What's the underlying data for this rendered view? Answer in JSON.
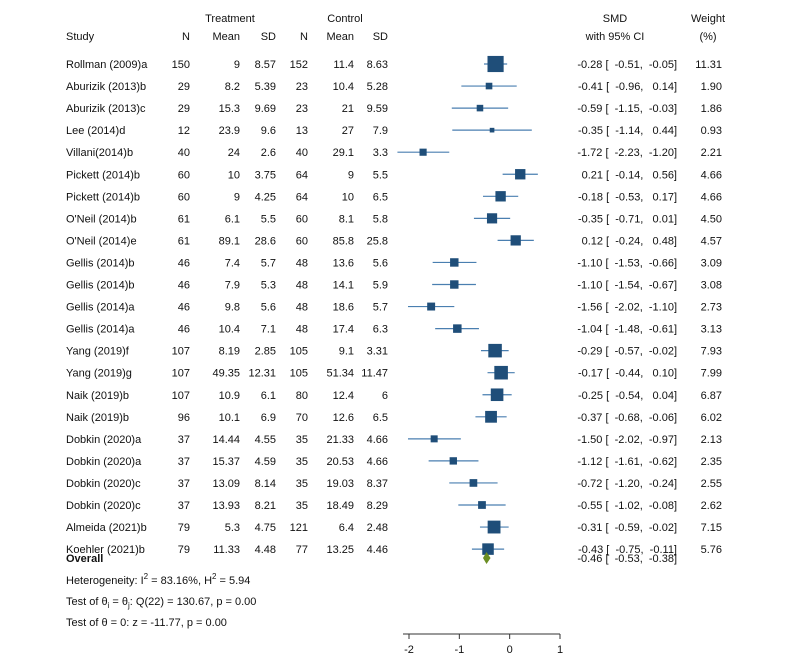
{
  "chart_data": {
    "type": "forest",
    "headers": {
      "group_treatment": "Treatment",
      "group_control": "Control",
      "study": "Study",
      "n": "N",
      "mean": "Mean",
      "sd": "SD",
      "smd": "SMD",
      "ci": "with 95% CI",
      "weight": "Weight",
      "weight_unit": "(%)"
    },
    "studies": [
      {
        "study": "Rollman (2009)a",
        "tn": "150",
        "tmean": "9",
        "tsd": "8.57",
        "cn": "152",
        "cmean": "11.4",
        "csd": "8.63",
        "smd": -0.28,
        "lo": -0.51,
        "hi": -0.05,
        "ci_text": "-0.28 [  -0.51,  -0.05]",
        "weight": 11.31,
        "weight_text": "11.31"
      },
      {
        "study": "Aburizik (2013)b",
        "tn": "29",
        "tmean": "8.2",
        "tsd": "5.39",
        "cn": "23",
        "cmean": "10.4",
        "csd": "5.28",
        "smd": -0.41,
        "lo": -0.96,
        "hi": 0.14,
        "ci_text": "-0.41 [  -0.96,   0.14]",
        "weight": 1.9,
        "weight_text": "1.90"
      },
      {
        "study": "Aburizik (2013)c",
        "tn": "29",
        "tmean": "15.3",
        "tsd": "9.69",
        "cn": "23",
        "cmean": "21",
        "csd": "9.59",
        "smd": -0.59,
        "lo": -1.15,
        "hi": -0.03,
        "ci_text": "-0.59 [  -1.15,  -0.03]",
        "weight": 1.86,
        "weight_text": "1.86"
      },
      {
        "study": "Lee (2014)d",
        "tn": "12",
        "tmean": "23.9",
        "tsd": "9.6",
        "cn": "13",
        "cmean": "27",
        "csd": "7.9",
        "smd": -0.35,
        "lo": -1.14,
        "hi": 0.44,
        "ci_text": "-0.35 [  -1.14,   0.44]",
        "weight": 0.93,
        "weight_text": "0.93"
      },
      {
        "study": "Villani(2014)b",
        "tn": "40",
        "tmean": "24",
        "tsd": "2.6",
        "cn": "40",
        "cmean": "29.1",
        "csd": "3.3",
        "smd": -1.72,
        "lo": -2.23,
        "hi": -1.2,
        "ci_text": "-1.72 [  -2.23,  -1.20]",
        "weight": 2.21,
        "weight_text": "2.21"
      },
      {
        "study": "Pickett (2014)b",
        "tn": "60",
        "tmean": "10",
        "tsd": "3.75",
        "cn": "64",
        "cmean": "9",
        "csd": "5.5",
        "smd": 0.21,
        "lo": -0.14,
        "hi": 0.56,
        "ci_text": "0.21 [  -0.14,   0.56]",
        "weight": 4.66,
        "weight_text": "4.66"
      },
      {
        "study": "Pickett (2014)b",
        "tn": "60",
        "tmean": "9",
        "tsd": "4.25",
        "cn": "64",
        "cmean": "10",
        "csd": "6.5",
        "smd": -0.18,
        "lo": -0.53,
        "hi": 0.17,
        "ci_text": "-0.18 [  -0.53,   0.17]",
        "weight": 4.66,
        "weight_text": "4.66"
      },
      {
        "study": "O'Neil (2014)b",
        "tn": "61",
        "tmean": "6.1",
        "tsd": "5.5",
        "cn": "60",
        "cmean": "8.1",
        "csd": "5.8",
        "smd": -0.35,
        "lo": -0.71,
        "hi": 0.01,
        "ci_text": "-0.35 [  -0.71,   0.01]",
        "weight": 4.5,
        "weight_text": "4.50"
      },
      {
        "study": "O'Neil (2014)e",
        "tn": "61",
        "tmean": "89.1",
        "tsd": "28.6",
        "cn": "60",
        "cmean": "85.8",
        "csd": "25.8",
        "smd": 0.12,
        "lo": -0.24,
        "hi": 0.48,
        "ci_text": "0.12 [  -0.24,   0.48]",
        "weight": 4.57,
        "weight_text": "4.57"
      },
      {
        "study": "Gellis (2014)b",
        "tn": "46",
        "tmean": "7.4",
        "tsd": "5.7",
        "cn": "48",
        "cmean": "13.6",
        "csd": "5.6",
        "smd": -1.1,
        "lo": -1.53,
        "hi": -0.66,
        "ci_text": "-1.10 [  -1.53,  -0.66]",
        "weight": 3.09,
        "weight_text": "3.09"
      },
      {
        "study": "Gellis (2014)b",
        "tn": "46",
        "tmean": "7.9",
        "tsd": "5.3",
        "cn": "48",
        "cmean": "14.1",
        "csd": "5.9",
        "smd": -1.1,
        "lo": -1.54,
        "hi": -0.67,
        "ci_text": "-1.10 [  -1.54,  -0.67]",
        "weight": 3.08,
        "weight_text": "3.08"
      },
      {
        "study": "Gellis (2014)a",
        "tn": "46",
        "tmean": "9.8",
        "tsd": "5.6",
        "cn": "48",
        "cmean": "18.6",
        "csd": "5.7",
        "smd": -1.56,
        "lo": -2.02,
        "hi": -1.1,
        "ci_text": "-1.56 [  -2.02,  -1.10]",
        "weight": 2.73,
        "weight_text": "2.73"
      },
      {
        "study": "Gellis (2014)a",
        "tn": "46",
        "tmean": "10.4",
        "tsd": "7.1",
        "cn": "48",
        "cmean": "17.4",
        "csd": "6.3",
        "smd": -1.04,
        "lo": -1.48,
        "hi": -0.61,
        "ci_text": "-1.04 [  -1.48,  -0.61]",
        "weight": 3.13,
        "weight_text": "3.13"
      },
      {
        "study": "Yang (2019)f",
        "tn": "107",
        "tmean": "8.19",
        "tsd": "2.85",
        "cn": "105",
        "cmean": "9.1",
        "csd": "3.31",
        "smd": -0.29,
        "lo": -0.57,
        "hi": -0.02,
        "ci_text": "-0.29 [  -0.57,  -0.02]",
        "weight": 7.93,
        "weight_text": "7.93"
      },
      {
        "study": "Yang (2019)g",
        "tn": "107",
        "tmean": "49.35",
        "tsd": "12.31",
        "cn": "105",
        "cmean": "51.34",
        "csd": "11.47",
        "smd": -0.17,
        "lo": -0.44,
        "hi": 0.1,
        "ci_text": "-0.17 [  -0.44,   0.10]",
        "weight": 7.99,
        "weight_text": "7.99"
      },
      {
        "study": "Naik (2019)b",
        "tn": "107",
        "tmean": "10.9",
        "tsd": "6.1",
        "cn": "80",
        "cmean": "12.4",
        "csd": "6",
        "smd": -0.25,
        "lo": -0.54,
        "hi": 0.04,
        "ci_text": "-0.25 [  -0.54,   0.04]",
        "weight": 6.87,
        "weight_text": "6.87"
      },
      {
        "study": "Naik (2019)b",
        "tn": "96",
        "tmean": "10.1",
        "tsd": "6.9",
        "cn": "70",
        "cmean": "12.6",
        "csd": "6.5",
        "smd": -0.37,
        "lo": -0.68,
        "hi": -0.06,
        "ci_text": "-0.37 [  -0.68,  -0.06]",
        "weight": 6.02,
        "weight_text": "6.02"
      },
      {
        "study": "Dobkin (2020)a",
        "tn": "37",
        "tmean": "14.44",
        "tsd": "4.55",
        "cn": "35",
        "cmean": "21.33",
        "csd": "4.66",
        "smd": -1.5,
        "lo": -2.02,
        "hi": -0.97,
        "ci_text": "-1.50 [  -2.02,  -0.97]",
        "weight": 2.13,
        "weight_text": "2.13"
      },
      {
        "study": "Dobkin (2020)a",
        "tn": "37",
        "tmean": "15.37",
        "tsd": "4.59",
        "cn": "35",
        "cmean": "20.53",
        "csd": "4.66",
        "smd": -1.12,
        "lo": -1.61,
        "hi": -0.62,
        "ci_text": "-1.12 [  -1.61,  -0.62]",
        "weight": 2.35,
        "weight_text": "2.35"
      },
      {
        "study": "Dobkin (2020)c",
        "tn": "37",
        "tmean": "13.09",
        "tsd": "8.14",
        "cn": "35",
        "cmean": "19.03",
        "csd": "8.37",
        "smd": -0.72,
        "lo": -1.2,
        "hi": -0.24,
        "ci_text": "-0.72 [  -1.20,  -0.24]",
        "weight": 2.55,
        "weight_text": "2.55"
      },
      {
        "study": "Dobkin (2020)c",
        "tn": "37",
        "tmean": "13.93",
        "tsd": "8.21",
        "cn": "35",
        "cmean": "18.49",
        "csd": "8.29",
        "smd": -0.55,
        "lo": -1.02,
        "hi": -0.08,
        "ci_text": "-0.55 [  -1.02,  -0.08]",
        "weight": 2.62,
        "weight_text": "2.62"
      },
      {
        "study": "Almeida (2021)b",
        "tn": "79",
        "tmean": "5.3",
        "tsd": "4.75",
        "cn": "121",
        "cmean": "6.4",
        "csd": "2.48",
        "smd": -0.31,
        "lo": -0.59,
        "hi": -0.02,
        "ci_text": "-0.31 [  -0.59,  -0.02]",
        "weight": 7.15,
        "weight_text": "7.15"
      },
      {
        "study": "Koehler (2021)b",
        "tn": "79",
        "tmean": "11.33",
        "tsd": "4.48",
        "cn": "77",
        "cmean": "13.25",
        "csd": "4.46",
        "smd": -0.43,
        "lo": -0.75,
        "hi": -0.11,
        "ci_text": "-0.43 [  -0.75,  -0.11]",
        "weight": 5.76,
        "weight_text": "5.76"
      }
    ],
    "overall": {
      "label": "Overall",
      "smd": -0.46,
      "lo": -0.53,
      "hi": -0.38,
      "ci_text": "-0.46 [  -0.53,  -0.38]"
    },
    "stats": {
      "heterogeneity_prefix": "Heterogeneity: I",
      "heterogeneity_rest": " = 83.16%,  H",
      "heterogeneity_end": " = 5.94",
      "homogeneity_prefix": "Test of θ",
      "homogeneity_mid": " = θ",
      "homogeneity_end": ": Q(22) = 130.67, p = 0.00",
      "effect_test": "Test of θ = 0: z = -11.77, p = 0.00"
    },
    "x_axis": {
      "range": [
        -2,
        1
      ],
      "ticks": [
        -2,
        -1,
        0,
        1
      ],
      "tick_labels": [
        "-2",
        "-1",
        "0",
        "1"
      ]
    },
    "colors": {
      "marker": "#1f4e79",
      "ci_line": "#4a7fb0",
      "diamond": "#6b8e23",
      "text": "#111111",
      "axis": "#333333"
    }
  }
}
